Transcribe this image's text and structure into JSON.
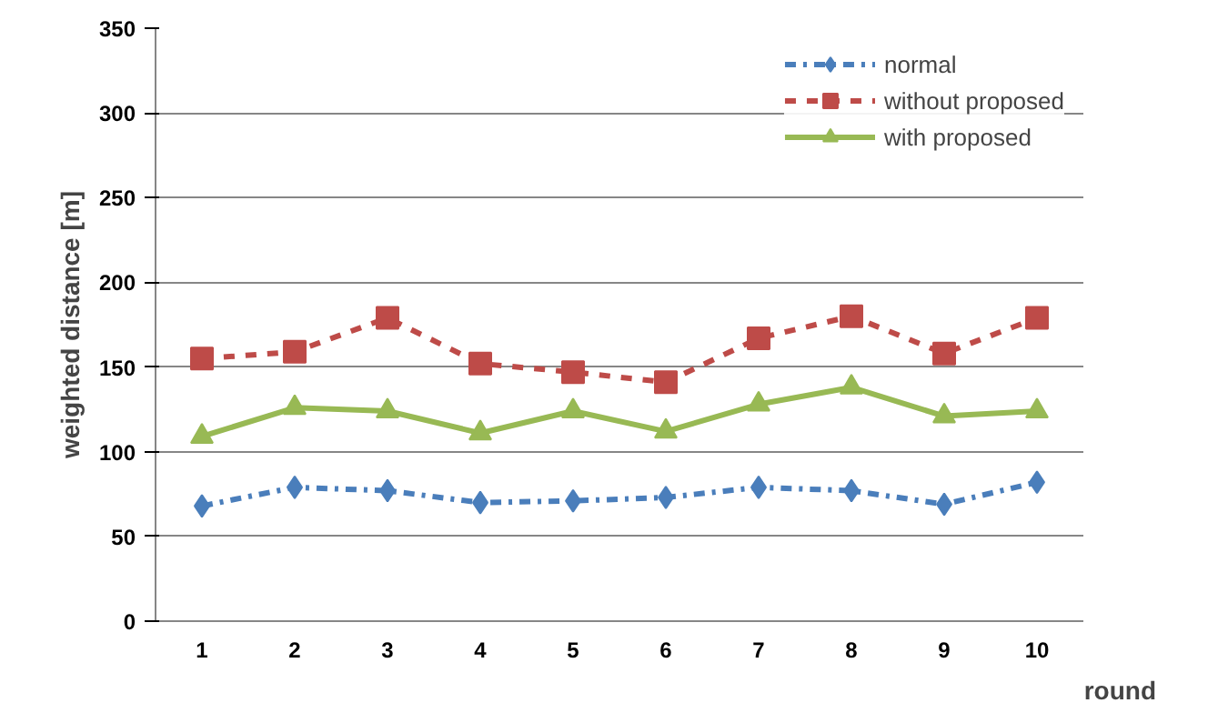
{
  "chart_data": {
    "type": "line",
    "xlabel": "round",
    "ylabel": "weighted distance [m]",
    "categories": [
      "1",
      "2",
      "3",
      "4",
      "5",
      "6",
      "7",
      "8",
      "9",
      "10"
    ],
    "ylim": [
      0,
      350
    ],
    "yticks": [
      0,
      50,
      100,
      150,
      200,
      250,
      300,
      350
    ],
    "grid": "y",
    "legend": "top right",
    "series": [
      {
        "name": "normal",
        "color": "#4a7ebb",
        "marker": "diamond",
        "line_style": "dashdot",
        "values": [
          68,
          79,
          77,
          70,
          71,
          73,
          79,
          77,
          69,
          82
        ]
      },
      {
        "name": "without proposed",
        "color": "#be4b48",
        "marker": "square",
        "line_style": "dashed",
        "values": [
          155,
          159,
          179,
          152,
          147,
          141,
          167,
          180,
          158,
          179
        ]
      },
      {
        "name": "with proposed",
        "color": "#98b954",
        "marker": "triangle",
        "line_style": "solid",
        "values": [
          109,
          126,
          124,
          111,
          124,
          112,
          128,
          138,
          121,
          124
        ]
      }
    ]
  }
}
